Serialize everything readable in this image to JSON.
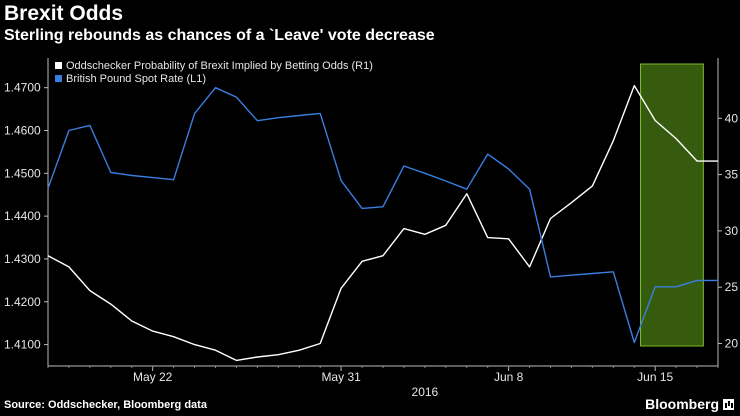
{
  "title": "Brexit Odds",
  "subtitle": "Sterling rebounds as chances of a `Leave' vote decrease",
  "source": "Source: Oddschecker, Bloomberg data",
  "brand": "Bloomberg",
  "colors": {
    "background": "#000000",
    "pound": "#3a7ee0",
    "odds": "#ffffff",
    "highlight": "#7bbf2a"
  },
  "chart_data": {
    "type": "line",
    "x_labels": [
      "May 22",
      "May 31",
      "Jun 8",
      "Jun 15"
    ],
    "x_label_days": [
      6,
      15,
      23,
      30
    ],
    "year_label": "2016",
    "xlim": [
      1,
      33
    ],
    "ylim_left": [
      1.405,
      1.476
    ],
    "ylim_right": [
      18,
      45
    ],
    "left_ticks": [
      "1.4100",
      "1.4200",
      "1.4300",
      "1.4400",
      "1.4500",
      "1.4600",
      "1.4700"
    ],
    "right_ticks": [
      "20",
      "25",
      "30",
      "35",
      "40"
    ],
    "highlight_range": [
      29.3,
      32.3
    ],
    "series": [
      {
        "name": "Oddschecker Probability of Brexit Implied by Betting Odds (R1)",
        "axis": "right",
        "x": [
          1,
          2,
          3,
          4,
          5,
          6,
          7,
          8,
          9,
          10,
          11,
          12,
          13,
          14,
          15,
          16,
          17,
          18,
          19,
          20,
          21,
          22,
          23,
          24,
          25,
          26,
          27,
          28,
          29,
          30,
          31,
          32,
          33
        ],
        "y": [
          27.8,
          26.8,
          24.7,
          23.5,
          22.0,
          21.1,
          20.6,
          19.9,
          19.4,
          18.5,
          18.8,
          19.0,
          19.4,
          20.0,
          24.9,
          27.3,
          27.8,
          30.2,
          29.7,
          30.5,
          33.3,
          29.4,
          29.3,
          26.8,
          31.1,
          32.5,
          34.0,
          38.0,
          42.9,
          39.8,
          38.2,
          36.2,
          36.2
        ]
      },
      {
        "name": "British Pound Spot Rate (L1)",
        "axis": "left",
        "x": [
          1,
          2,
          3,
          4,
          5,
          6,
          7,
          8,
          9,
          10,
          11,
          12,
          13,
          14,
          15,
          16,
          17,
          18,
          19,
          20,
          21,
          22,
          23,
          24,
          25,
          26,
          27,
          28,
          29,
          30,
          31,
          32,
          33
        ],
        "y": [
          1.4465,
          1.46,
          1.4612,
          1.4502,
          1.4495,
          1.449,
          1.4485,
          1.464,
          1.47,
          1.4678,
          1.4623,
          1.463,
          1.4635,
          1.464,
          1.4483,
          1.4418,
          1.4422,
          1.4517,
          1.45,
          1.4482,
          1.4463,
          1.4545,
          1.451,
          1.4463,
          1.4258,
          1.4262,
          1.4266,
          1.427,
          1.4105,
          1.4235,
          1.4235,
          1.425,
          1.425
        ]
      }
    ]
  }
}
